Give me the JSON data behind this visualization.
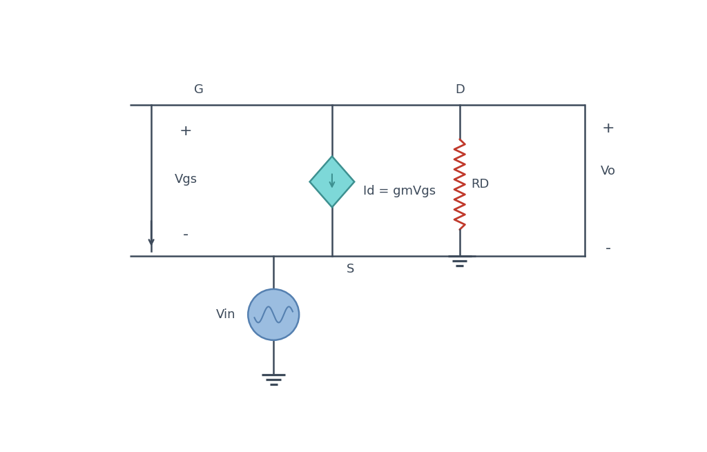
{
  "bg_color": "#ffffff",
  "line_color": "#3d4a5a",
  "line_width": 1.8,
  "resistor_color": "#c0392b",
  "diamond_fill": "#7dd8d8",
  "diamond_edge": "#3d9090",
  "source_fill": "#9bbde0",
  "source_edge": "#5580b0",
  "label_fontsize": 13,
  "label_color": "#3d4a5a",
  "G_label": "G",
  "D_label": "D",
  "S_label": "S",
  "Vgs_label": "Vgs",
  "Vo_label": "Vo",
  "Vin_label": "Vin",
  "plus_label": "+",
  "minus_label": "-",
  "RD_label": "RD",
  "Id_label": "Id = gmVgs"
}
